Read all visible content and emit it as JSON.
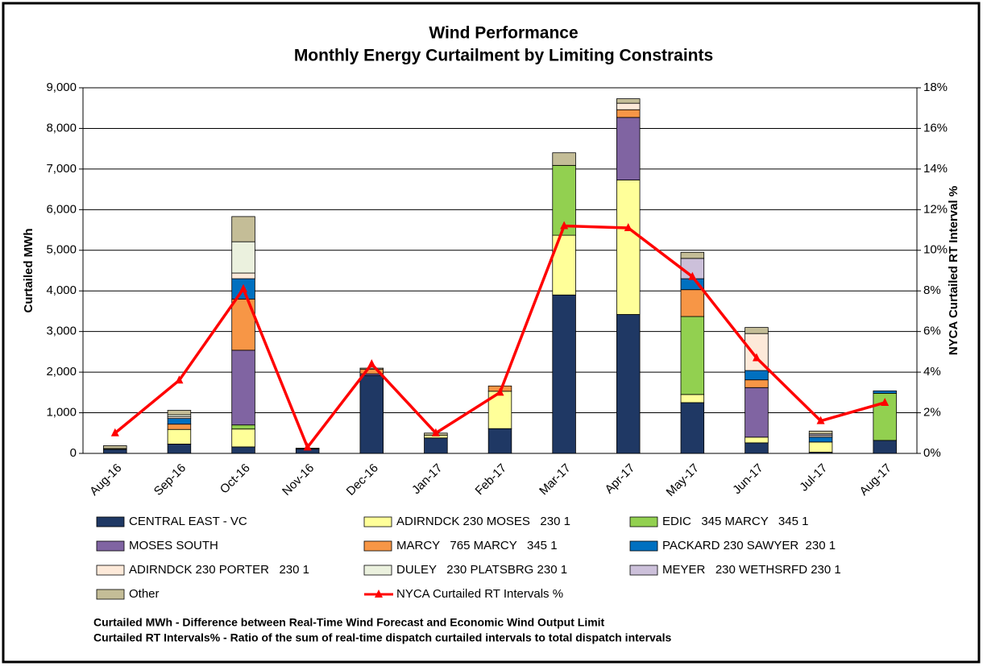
{
  "chart_data": {
    "type": "bar",
    "title": "Wind Performance",
    "subtitle": "Monthly Energy Curtailment by Limiting Constraints",
    "y_label": "Curtailed MWh",
    "y2_label": "NYCA Curtailed RT Interval %",
    "stacked": true,
    "categories": [
      "Aug-16",
      "Sep-16",
      "Oct-16",
      "Nov-16",
      "Dec-16",
      "Jan-17",
      "Feb-17",
      "Mar-17",
      "Apr-17",
      "May-17",
      "Jun-17",
      "Jul-17",
      "Aug-17"
    ],
    "series": [
      {
        "name": "CENTRAL EAST - VC",
        "color": "#1f3864",
        "values": [
          100,
          230,
          160,
          110,
          1920,
          380,
          610,
          3900,
          3420,
          1250,
          260,
          30,
          320
        ]
      },
      {
        "name": "ADIRNDCK 230 MOSES   230 1",
        "color": "#ffff99",
        "values": [
          20,
          360,
          440,
          0,
          0,
          70,
          920,
          1470,
          3310,
          200,
          140,
          250,
          0
        ]
      },
      {
        "name": "EDIC   345 MARCY   345 1",
        "color": "#92d050",
        "values": [
          0,
          0,
          100,
          0,
          0,
          0,
          0,
          1720,
          0,
          1920,
          0,
          0,
          1160
        ]
      },
      {
        "name": "MOSES SOUTH",
        "color": "#8064a2",
        "values": [
          0,
          0,
          1840,
          0,
          40,
          0,
          0,
          0,
          1540,
          0,
          1220,
          0,
          0
        ]
      },
      {
        "name": "MARCY   765 MARCY   345 1",
        "color": "#f79646",
        "values": [
          0,
          130,
          1260,
          0,
          110,
          0,
          130,
          0,
          190,
          660,
          190,
          0,
          0
        ]
      },
      {
        "name": "PACKARD 230 SAWYER  230 1",
        "color": "#0070c0",
        "values": [
          0,
          140,
          500,
          0,
          0,
          0,
          0,
          0,
          0,
          270,
          230,
          120,
          60
        ]
      },
      {
        "name": "ADIRNDCK 230 PORTER   230 1",
        "color": "#fde9d9",
        "values": [
          0,
          40,
          140,
          0,
          0,
          0,
          0,
          0,
          160,
          0,
          910,
          40,
          0
        ]
      },
      {
        "name": "DULEY   230 PLATSBRG 230 1",
        "color": "#ebf1de",
        "values": [
          0,
          50,
          770,
          0,
          0,
          0,
          0,
          0,
          0,
          0,
          0,
          0,
          0
        ]
      },
      {
        "name": "MEYER   230 WETHSRFD 230 1",
        "color": "#ccc0da",
        "values": [
          0,
          0,
          0,
          0,
          0,
          0,
          0,
          0,
          0,
          500,
          0,
          40,
          0
        ]
      },
      {
        "name": "Other",
        "color": "#c4bd97",
        "values": [
          70,
          110,
          620,
          20,
          30,
          50,
          0,
          310,
          110,
          150,
          150,
          70,
          0
        ]
      },
      {
        "name": "NYCA Curtailed RT Intervals %",
        "color": "#ff0000",
        "type": "line",
        "axis": "y2",
        "values": [
          1.0,
          3.6,
          8.1,
          0.3,
          4.4,
          1.0,
          3.0,
          11.2,
          11.1,
          8.7,
          4.7,
          1.6,
          2.5
        ]
      }
    ],
    "ylim": [
      0,
      9000
    ],
    "yticks": [
      0,
      {
        "value": 1000,
        "label": "1,000"
      },
      {
        "value": 2000,
        "label": "2,000"
      },
      {
        "value": 3000,
        "label": "3,000"
      },
      {
        "value": 4000,
        "label": "4,000"
      },
      {
        "value": 5000,
        "label": "5,000"
      },
      {
        "value": 6000,
        "label": "6,000"
      },
      {
        "value": 7000,
        "label": "7,000"
      },
      {
        "value": 8000,
        "label": "8,000"
      },
      {
        "value": 9000,
        "label": "9,000"
      }
    ],
    "y2lim": [
      0,
      18
    ],
    "y2ticks": [
      {
        "value": 0,
        "label": "0%"
      },
      {
        "value": 2,
        "label": "2%"
      },
      {
        "value": 4,
        "label": "4%"
      },
      {
        "value": 6,
        "label": "6%"
      },
      {
        "value": 8,
        "label": "8%"
      },
      {
        "value": 10,
        "label": "10%"
      },
      {
        "value": 12,
        "label": "12%"
      },
      {
        "value": 14,
        "label": "14%"
      },
      {
        "value": 16,
        "label": "16%"
      },
      {
        "value": 18,
        "label": "18%"
      }
    ],
    "grid": true,
    "legend": "bottom",
    "notes": [
      "Curtailed MWh - Difference between Real-Time Wind Forecast and Economic Wind Output Limit",
      "Curtailed RT Intervals% - Ratio of the sum of real-time dispatch curtailed intervals to total dispatch intervals"
    ]
  }
}
